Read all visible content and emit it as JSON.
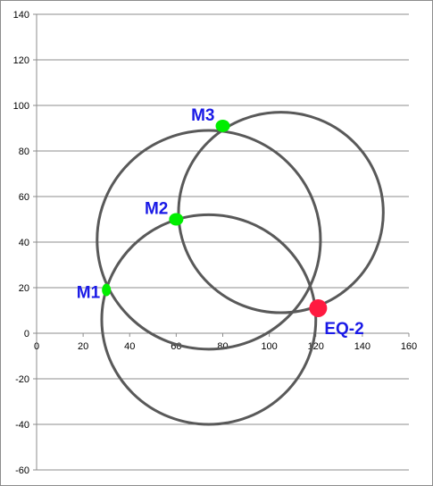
{
  "chart_data": {
    "type": "scatter",
    "title": "",
    "xlabel": "",
    "ylabel": "",
    "xlim": [
      0,
      160
    ],
    "ylim": [
      -60,
      140
    ],
    "x_ticks": [
      0,
      20,
      40,
      60,
      80,
      100,
      120,
      140,
      160
    ],
    "y_ticks": [
      -60,
      -40,
      -20,
      0,
      20,
      40,
      60,
      80,
      100,
      120,
      140
    ],
    "grid": "horizontal",
    "points": [
      {
        "label": "M1",
        "x": 30,
        "y": 19,
        "color": "#00ee00",
        "label_color": "#1a1ae6"
      },
      {
        "label": "M2",
        "x": 60,
        "y": 50,
        "color": "#00ee00",
        "label_color": "#1a1ae6"
      },
      {
        "label": "M3",
        "x": 80,
        "y": 91,
        "color": "#00ee00",
        "label_color": "#1a1ae6"
      },
      {
        "label": "EQ-2",
        "x": 121,
        "y": 11,
        "color": "#ff1a40",
        "label_color": "#1a1ae6"
      }
    ],
    "circles": [
      {
        "center_of": "M1",
        "cx": 74,
        "cy": 6,
        "r": 46
      },
      {
        "center_of": "M2",
        "cx": 74,
        "cy": 41,
        "r": 48
      },
      {
        "center_of": "M3",
        "cx": 105,
        "cy": 53,
        "r": 44
      }
    ],
    "colors": {
      "circle": "#595959",
      "grid": "#8c8c8c",
      "axis": "#8c8c8c"
    }
  }
}
